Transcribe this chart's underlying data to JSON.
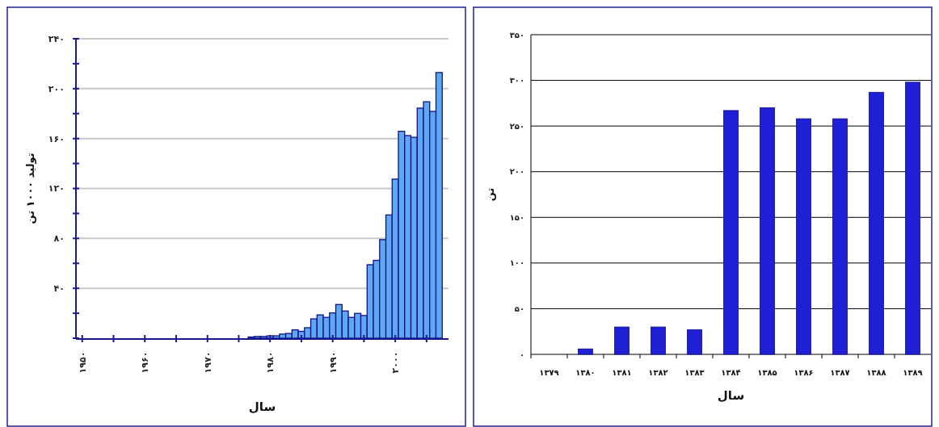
{
  "chart_data": [
    {
      "type": "bar",
      "xlabel": "سال",
      "ylabel": "تولید ۱۰۰۰ تن",
      "color": "#5ea8f2",
      "x": [
        1977,
        1978,
        1979,
        1980,
        1981,
        1982,
        1983,
        1984,
        1985,
        1986,
        1987,
        1988,
        1989,
        1990,
        1991,
        1992,
        1993,
        1994,
        1995,
        1996,
        1997,
        1998,
        1999,
        2000,
        2001,
        2002,
        2003,
        2004,
        2005,
        2006,
        2007
      ],
      "values": [
        1,
        1.4,
        1.4,
        1.9,
        1.9,
        3.3,
        3.8,
        6.7,
        5.5,
        8.4,
        15.5,
        18.7,
        16.7,
        20.3,
        27,
        21.8,
        16.7,
        19.9,
        18.2,
        58.9,
        62.4,
        79,
        98.8,
        127.5,
        165.8,
        162.4,
        161,
        184.4,
        189.5,
        181.8,
        212.9
      ],
      "xlim": [
        1949,
        2008.5
      ],
      "xticks": [
        {
          "value": 1950,
          "label": "۱۹۵۰"
        },
        {
          "value": 1955,
          "label": null
        },
        {
          "value": 1960,
          "label": "۱۹۶۰"
        },
        {
          "value": 1965,
          "label": null
        },
        {
          "value": 1970,
          "label": "۱۹۷۰"
        },
        {
          "value": 1975,
          "label": null
        },
        {
          "value": 1980,
          "label": "۱۹۸۰"
        },
        {
          "value": 1985,
          "label": null
        },
        {
          "value": 1990,
          "label": "۱۹۹۰"
        },
        {
          "value": 1995,
          "label": null
        },
        {
          "value": 2000,
          "label": "۲۰۰۰"
        },
        {
          "value": 2005,
          "label": null
        }
      ],
      "ylim": [
        0,
        240
      ],
      "yticks": [
        {
          "value": 0,
          "label": null
        },
        {
          "value": 20,
          "label": null
        },
        {
          "value": 40,
          "label": "۴۰"
        },
        {
          "value": 60,
          "label": null
        },
        {
          "value": 80,
          "label": "۸۰"
        },
        {
          "value": 100,
          "label": null
        },
        {
          "value": 120,
          "label": "۱۲۰"
        },
        {
          "value": 140,
          "label": null
        },
        {
          "value": 160,
          "label": "۱۶۰"
        },
        {
          "value": 180,
          "label": null
        },
        {
          "value": 200,
          "label": "۲۰۰"
        },
        {
          "value": 220,
          "label": null
        },
        {
          "value": 240,
          "label": "۲۴۰"
        }
      ],
      "grid": "y"
    },
    {
      "type": "bar",
      "xlabel": "سال",
      "ylabel": "تن",
      "color": "#1f1fd6",
      "categories": [
        "۱۳۷۹",
        "۱۳۸۰",
        "۱۳۸۱",
        "۱۳۸۲",
        "۱۳۸۳",
        "۱۳۸۴",
        "۱۳۸۵",
        "۱۳۸۶",
        "۱۳۸۷",
        "۱۳۸۸",
        "۱۳۸۹"
      ],
      "values": [
        0,
        6,
        30,
        30,
        27,
        267,
        270,
        258,
        258,
        287,
        298
      ],
      "ylim": [
        0,
        350
      ],
      "yticks": [
        {
          "value": 0,
          "label": "۰"
        },
        {
          "value": 50,
          "label": "۵۰"
        },
        {
          "value": 100,
          "label": "۱۰۰"
        },
        {
          "value": 150,
          "label": "۱۵۰"
        },
        {
          "value": 200,
          "label": "۲۰۰"
        },
        {
          "value": 250,
          "label": "۲۵۰"
        },
        {
          "value": 300,
          "label": "۳۰۰"
        },
        {
          "value": 350,
          "label": "۳۵۰"
        }
      ],
      "grid": true
    }
  ]
}
